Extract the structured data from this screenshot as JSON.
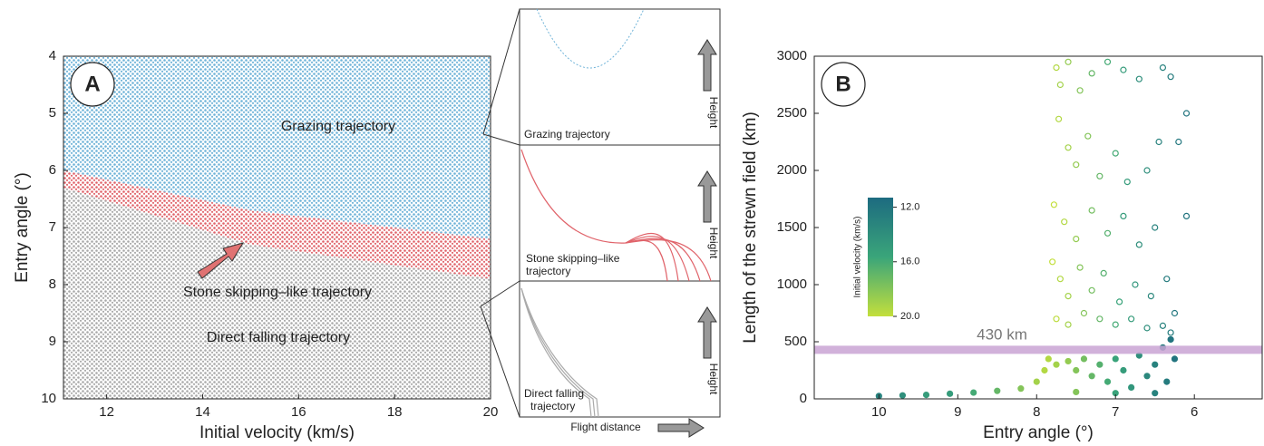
{
  "chart_data": [
    {
      "type": "region-scatter",
      "panel_label": "A",
      "xlabel": "Initial velocity (km/s)",
      "ylabel": "Entry angle (°)",
      "xlim": [
        11.1,
        20
      ],
      "ylim": [
        10,
        4
      ],
      "xticks": [
        12,
        14,
        16,
        18,
        20
      ],
      "yticks": [
        4,
        5,
        6,
        7,
        8,
        9,
        10
      ],
      "regions": [
        {
          "name": "Grazing trajectory",
          "color": "#6fb3d8",
          "x": [
            11.1,
            20,
            20,
            15,
            11.1
          ],
          "y": [
            4,
            4,
            7.2,
            6.7,
            6.0
          ]
        },
        {
          "name": "Stone skipping–like trajectory",
          "color": "#e0636a",
          "x": [
            11.1,
            15,
            20,
            20,
            15,
            11.1
          ],
          "y": [
            6.0,
            6.7,
            7.2,
            7.9,
            7.3,
            6.3
          ]
        },
        {
          "name": "Direct falling trajectory",
          "color": "#a9a9a9",
          "x": [
            11.1,
            15,
            20,
            20,
            11.1
          ],
          "y": [
            6.3,
            7.3,
            7.9,
            10,
            10
          ]
        }
      ]
    },
    {
      "type": "scatter",
      "panel_label": "B",
      "xlabel": "Entry angle (°)",
      "ylabel": "Length of the strewn field (km)",
      "xlim": [
        10.82,
        5.14
      ],
      "ylim": [
        0,
        3000
      ],
      "xticks": [
        10,
        9,
        8,
        7,
        6
      ],
      "yticks": [
        0,
        500,
        1000,
        1500,
        2000,
        2500,
        3000
      ],
      "reference_band": {
        "value": 430,
        "label": "430 km",
        "color": "#c9a3d3"
      },
      "colorbar": {
        "label": "Initial velocity (km/s)",
        "clim": [
          11.3,
          20
        ],
        "colors": [
          "#1d6b80",
          "#3aa57a",
          "#c3df3c"
        ],
        "ticks": [
          {
            "value": 12,
            "label": "12.0"
          },
          {
            "value": 16,
            "label": "16.0"
          },
          {
            "value": 20,
            "label": "20.0"
          }
        ]
      },
      "series": [
        {
          "marker": "open",
          "x": [
            7.75,
            7.7,
            7.6,
            7.45,
            7.3,
            7.1,
            6.9,
            6.7,
            6.4,
            6.3,
            6.1,
            7.72,
            7.6,
            7.5,
            7.35,
            7.2,
            7.0,
            6.85,
            6.6,
            6.45,
            6.2,
            7.78,
            7.65,
            7.5,
            7.3,
            7.1,
            6.9,
            6.7,
            6.5,
            6.1,
            7.8,
            7.7,
            7.6,
            7.45,
            7.3,
            7.15,
            6.95,
            6.75,
            6.55,
            6.35,
            6.25,
            7.75,
            7.6,
            7.4,
            7.2,
            7.0,
            6.8,
            6.6,
            6.4,
            6.3
          ],
          "y": [
            2900,
            2750,
            2950,
            2700,
            2850,
            2950,
            2880,
            2800,
            2900,
            2820,
            2500,
            2450,
            2200,
            2050,
            2300,
            1950,
            2150,
            1900,
            2000,
            2250,
            2250,
            1700,
            1550,
            1400,
            1650,
            1450,
            1600,
            1350,
            1500,
            1600,
            1200,
            1050,
            900,
            1150,
            950,
            1100,
            850,
            1000,
            900,
            1050,
            750,
            700,
            650,
            750,
            700,
            650,
            700,
            620,
            640,
            580
          ],
          "c": [
            19.5,
            19,
            18.5,
            18,
            17,
            16,
            15,
            14,
            13,
            12.5,
            12,
            19.5,
            19,
            18.5,
            18,
            17,
            16,
            15,
            14,
            13,
            12.2,
            20,
            19.5,
            18.5,
            17.5,
            16.5,
            15,
            14,
            13,
            12,
            20,
            19.5,
            19,
            18,
            17.5,
            16.5,
            15.5,
            14.5,
            13.5,
            12.5,
            12.2,
            19.8,
            19,
            18,
            17,
            16,
            15,
            14,
            13,
            12.5
          ]
        },
        {
          "marker": "filled",
          "x": [
            10,
            9.7,
            9.4,
            9.1,
            8.8,
            8.5,
            8.2,
            8.0,
            7.9,
            7.85,
            7.75,
            7.6,
            7.5,
            7.4,
            7.3,
            7.2,
            7.1,
            7.0,
            6.9,
            6.8,
            6.7,
            6.6,
            6.5,
            6.4,
            6.35,
            6.3,
            6.25,
            6.5,
            7.0,
            7.5
          ],
          "y": [
            25,
            30,
            35,
            45,
            55,
            70,
            90,
            150,
            250,
            350,
            300,
            330,
            250,
            350,
            200,
            300,
            150,
            350,
            250,
            100,
            380,
            200,
            300,
            450,
            150,
            520,
            350,
            50,
            50,
            60
          ],
          "c": [
            13,
            14,
            15,
            15,
            16,
            17,
            18,
            19,
            19.5,
            19.5,
            19,
            18.5,
            18,
            17.5,
            17,
            16.5,
            16,
            15.5,
            15,
            14.5,
            14,
            13.5,
            13,
            12.5,
            12.5,
            12,
            12,
            13,
            15.5,
            18
          ]
        }
      ]
    }
  ],
  "insets": {
    "panels": [
      {
        "lines": [
          "Grazing trajectory"
        ],
        "axis_label": "Height"
      },
      {
        "lines": [
          "Stone skipping–like",
          "trajectory"
        ],
        "axis_label": "Height"
      },
      {
        "lines": [
          "Direct falling",
          "trajectory"
        ],
        "axis_label": "Height"
      }
    ],
    "x_label": "Flight distance"
  }
}
